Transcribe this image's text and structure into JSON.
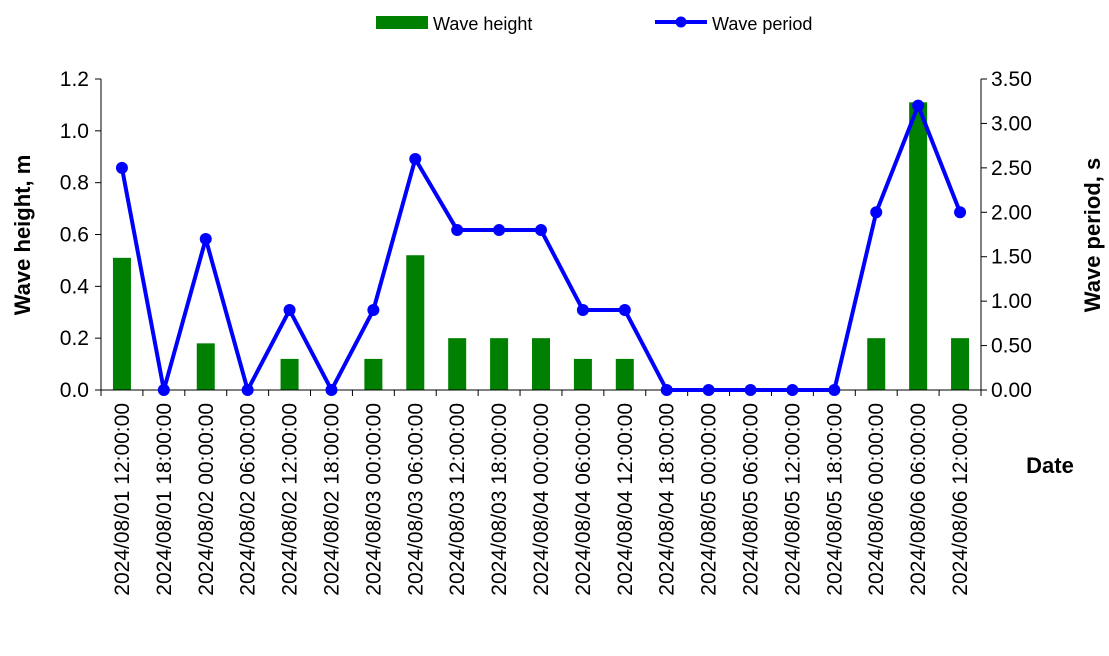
{
  "chart_data": {
    "type": "bar+line",
    "x_title": "Date",
    "categories": [
      "2024/08/01 12:00:00",
      "2024/08/01 18:00:00",
      "2024/08/02 00:00:00",
      "2024/08/02 06:00:00",
      "2024/08/02 12:00:00",
      "2024/08/02 18:00:00",
      "2024/08/03 00:00:00",
      "2024/08/03 06:00:00",
      "2024/08/03 12:00:00",
      "2024/08/03 18:00:00",
      "2024/08/04 00:00:00",
      "2024/08/04 06:00:00",
      "2024/08/04 12:00:00",
      "2024/08/04 18:00:00",
      "2024/08/05 00:00:00",
      "2024/08/05 06:00:00",
      "2024/08/05 12:00:00",
      "2024/08/05 18:00:00",
      "2024/08/06 00:00:00",
      "2024/08/06 06:00:00",
      "2024/08/06 12:00:00"
    ],
    "series": [
      {
        "name": "Wave height",
        "type": "bar",
        "axis": "left",
        "color": "#008000",
        "values": [
          0.51,
          0,
          0.18,
          0,
          0.12,
          0,
          0.12,
          0.52,
          0.2,
          0.2,
          0.2,
          0.12,
          0.12,
          0,
          0,
          0,
          0,
          0,
          0.2,
          1.11,
          0.2
        ]
      },
      {
        "name": "Wave period",
        "type": "line",
        "axis": "right",
        "color": "#0000ff",
        "values": [
          2.5,
          0,
          1.7,
          0,
          0.9,
          0,
          0.9,
          2.6,
          1.8,
          1.8,
          1.8,
          0.9,
          0.9,
          0,
          0,
          0,
          0,
          0,
          2.0,
          3.2,
          2.0
        ]
      }
    ],
    "y_left": {
      "title": "Wave height, m",
      "range": [
        0,
        1.2
      ],
      "ticks": [
        "0.0",
        "0.2",
        "0.4",
        "0.6",
        "0.8",
        "1.0",
        "1.2"
      ]
    },
    "y_right": {
      "title": "Wave period, s",
      "range": [
        0,
        3.5
      ],
      "ticks": [
        "0.00",
        "0.50",
        "1.00",
        "1.50",
        "2.00",
        "2.50",
        "3.00",
        "3.50"
      ]
    },
    "legend_position": "top-center",
    "grid": false
  }
}
